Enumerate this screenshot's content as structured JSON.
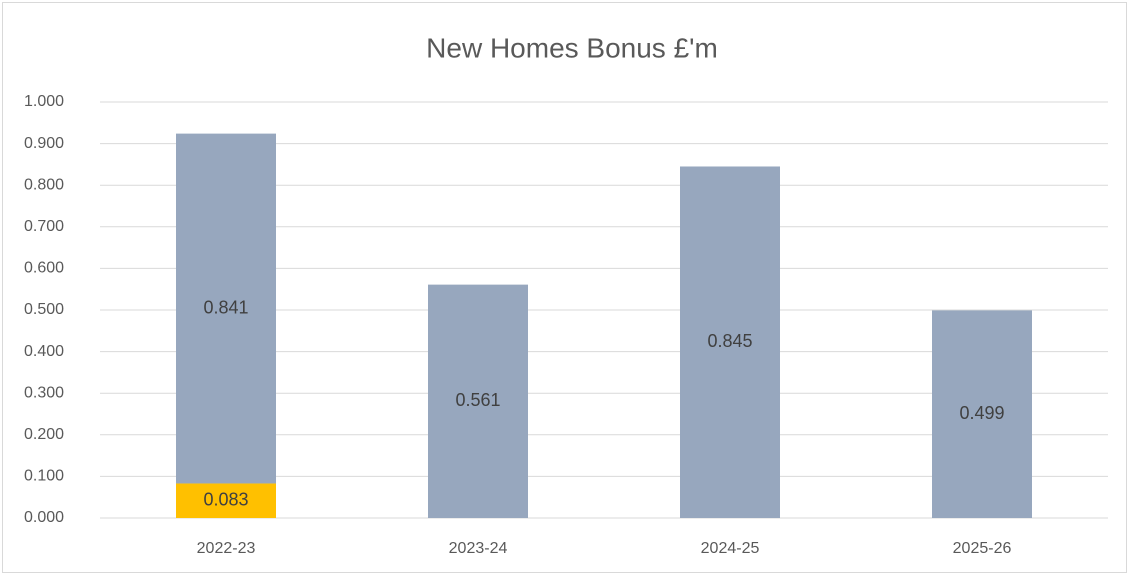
{
  "chart_data": {
    "type": "bar",
    "stacked": true,
    "title": "New Homes Bonus £'m",
    "categories": [
      "2022-23",
      "2023-24",
      "2024-25",
      "2025-26"
    ],
    "series": [
      {
        "color": "#ffc000",
        "values": [
          0.083,
          null,
          null,
          null
        ]
      },
      {
        "color": "#97a7be",
        "values": [
          0.841,
          0.561,
          0.845,
          0.499
        ]
      }
    ],
    "ylim": [
      0,
      1
    ],
    "yticks": [
      {
        "value": 0,
        "label": "0.000"
      },
      {
        "value": 0.1,
        "label": "0.100"
      },
      {
        "value": 0.2,
        "label": "0.200"
      },
      {
        "value": 0.3,
        "label": "0.300"
      },
      {
        "value": 0.4,
        "label": "0.400"
      },
      {
        "value": 0.5,
        "label": "0.500"
      },
      {
        "value": 0.6,
        "label": "0.600"
      },
      {
        "value": 0.7,
        "label": "0.700"
      },
      {
        "value": 0.8,
        "label": "0.800"
      },
      {
        "value": 0.9,
        "label": "0.900"
      },
      {
        "value": 1,
        "label": "1.000"
      }
    ],
    "grid": true
  }
}
